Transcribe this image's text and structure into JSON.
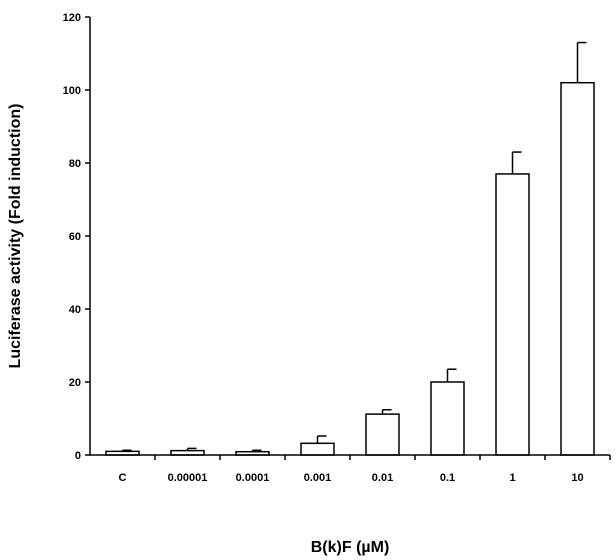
{
  "chart_data": {
    "type": "bar",
    "categories": [
      "C",
      "0.00001",
      "0.0001",
      "0.001",
      "0.01",
      "0.1",
      "1",
      "10"
    ],
    "series": [
      {
        "values": [
          1.0,
          1.2,
          0.9,
          3.2,
          11.2,
          20.0,
          77.0,
          102.0
        ],
        "error": [
          0.3,
          0.6,
          0.4,
          2.0,
          1.2,
          3.5,
          6.0,
          11.0
        ]
      }
    ],
    "title": "",
    "xlabel": "B(k)F (µM)",
    "ylabel": "Luciferase activity (Fold induction)",
    "ylim": [
      0,
      120
    ],
    "yticks": [
      "0",
      "20",
      "40",
      "60",
      "80",
      "100",
      "120"
    ],
    "bar_fill": "#ffffff",
    "bar_stroke": "#000000",
    "grid": false,
    "legend": "none"
  }
}
